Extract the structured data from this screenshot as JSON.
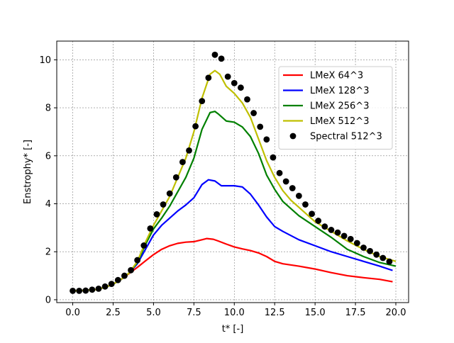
{
  "chart_data": {
    "type": "line",
    "title": "",
    "xlabel": "t* [-]",
    "ylabel": "Enstrophy* [-]",
    "xlim": [
      -0.99,
      20.79
    ],
    "ylim": [
      -0.12,
      10.78
    ],
    "xticks": [
      0.0,
      2.5,
      5.0,
      7.5,
      10.0,
      12.5,
      15.0,
      17.5,
      20.0
    ],
    "xtick_labels": [
      "0.0",
      "2.5",
      "5.0",
      "7.5",
      "10.0",
      "12.5",
      "15.0",
      "17.5",
      "20.0"
    ],
    "yticks": [
      0,
      2,
      4,
      6,
      8,
      10
    ],
    "ytick_labels": [
      "0",
      "2",
      "4",
      "6",
      "8",
      "10"
    ],
    "grid": true,
    "legend_position": "upper right",
    "series": [
      {
        "name": "LMeX 64^3",
        "color": "#ff0000",
        "style": "line",
        "x": [
          0.0,
          0.5,
          1.0,
          1.5,
          2.0,
          2.5,
          3.0,
          3.5,
          4.0,
          4.5,
          5.0,
          5.5,
          6.0,
          6.5,
          7.0,
          7.5,
          8.0,
          8.3,
          8.7,
          9.0,
          9.5,
          10.0,
          10.5,
          11.0,
          11.5,
          12.0,
          12.5,
          13.0,
          14.0,
          15.0,
          16.0,
          17.0,
          18.0,
          19.0,
          19.8
        ],
        "y": [
          0.37,
          0.38,
          0.4,
          0.43,
          0.52,
          0.65,
          0.85,
          1.1,
          1.35,
          1.62,
          1.88,
          2.1,
          2.25,
          2.35,
          2.4,
          2.42,
          2.5,
          2.55,
          2.52,
          2.45,
          2.32,
          2.2,
          2.12,
          2.05,
          1.95,
          1.8,
          1.6,
          1.5,
          1.4,
          1.28,
          1.13,
          1.0,
          0.92,
          0.85,
          0.75
        ]
      },
      {
        "name": "LMeX 128^3",
        "color": "#0000ff",
        "style": "line",
        "x": [
          0.0,
          0.5,
          1.0,
          1.5,
          2.0,
          2.5,
          3.0,
          3.5,
          4.0,
          4.5,
          5.0,
          5.5,
          6.0,
          6.5,
          7.0,
          7.5,
          8.0,
          8.4,
          8.8,
          9.2,
          9.6,
          10.0,
          10.5,
          11.0,
          11.5,
          12.0,
          12.5,
          13.0,
          14.0,
          15.0,
          16.0,
          17.0,
          18.0,
          19.0,
          19.8
        ],
        "y": [
          0.37,
          0.38,
          0.4,
          0.43,
          0.52,
          0.65,
          0.85,
          1.12,
          1.5,
          2.1,
          2.7,
          3.1,
          3.4,
          3.7,
          3.95,
          4.25,
          4.8,
          5.0,
          4.95,
          4.75,
          4.75,
          4.75,
          4.7,
          4.4,
          3.95,
          3.45,
          3.05,
          2.85,
          2.5,
          2.25,
          2.0,
          1.8,
          1.6,
          1.4,
          1.22
        ]
      },
      {
        "name": "LMeX 256^3",
        "color": "#008000",
        "style": "line",
        "x": [
          0.0,
          0.5,
          1.0,
          1.5,
          2.0,
          2.5,
          3.0,
          3.5,
          4.0,
          4.5,
          5.0,
          5.5,
          6.0,
          6.5,
          7.0,
          7.5,
          8.0,
          8.5,
          8.8,
          9.0,
          9.5,
          10.0,
          10.5,
          11.0,
          11.5,
          12.0,
          12.5,
          13.0,
          13.5,
          14.0,
          15.0,
          16.0,
          17.0,
          18.0,
          19.0,
          20.0
        ],
        "y": [
          0.37,
          0.38,
          0.4,
          0.43,
          0.52,
          0.65,
          0.85,
          1.12,
          1.55,
          2.3,
          2.95,
          3.4,
          3.9,
          4.5,
          5.1,
          5.9,
          7.1,
          7.8,
          7.85,
          7.75,
          7.45,
          7.4,
          7.2,
          6.8,
          6.1,
          5.2,
          4.6,
          4.1,
          3.8,
          3.5,
          3.05,
          2.6,
          2.1,
          1.8,
          1.55,
          1.4
        ]
      },
      {
        "name": "LMeX 512^3",
        "color": "#bfbf00",
        "style": "line",
        "x": [
          0.0,
          0.5,
          1.0,
          1.5,
          2.0,
          2.5,
          3.0,
          3.5,
          4.0,
          4.5,
          5.0,
          5.5,
          6.0,
          6.5,
          7.0,
          7.5,
          8.0,
          8.5,
          8.8,
          9.1,
          9.5,
          10.0,
          10.5,
          11.0,
          11.5,
          12.0,
          12.5,
          13.0,
          13.5,
          14.0,
          15.0,
          16.0,
          17.0,
          18.0,
          19.0,
          20.0
        ],
        "y": [
          0.37,
          0.38,
          0.4,
          0.43,
          0.52,
          0.65,
          0.85,
          1.12,
          1.6,
          2.4,
          3.1,
          3.7,
          4.3,
          5.1,
          5.9,
          7.0,
          8.4,
          9.4,
          9.55,
          9.4,
          8.9,
          8.6,
          8.2,
          7.6,
          6.7,
          5.8,
          5.1,
          4.55,
          4.15,
          3.85,
          3.25,
          2.85,
          2.45,
          2.1,
          1.8,
          1.6
        ]
      },
      {
        "name": "Spectral 512^3",
        "color": "#000000",
        "style": "marker",
        "x": [
          0.0,
          0.4,
          0.8,
          1.2,
          1.6,
          2.0,
          2.4,
          2.8,
          3.2,
          3.6,
          4.0,
          4.4,
          4.8,
          5.2,
          5.6,
          6.0,
          6.4,
          6.8,
          7.2,
          7.6,
          8.0,
          8.4,
          8.8,
          9.2,
          9.6,
          10.0,
          10.4,
          10.8,
          11.2,
          11.6,
          12.0,
          12.4,
          12.8,
          13.2,
          13.6,
          14.0,
          14.4,
          14.8,
          15.2,
          15.6,
          16.0,
          16.4,
          16.8,
          17.2,
          17.6,
          18.0,
          18.4,
          18.8,
          19.2,
          19.6
        ],
        "y": [
          0.37,
          0.37,
          0.38,
          0.42,
          0.46,
          0.55,
          0.66,
          0.82,
          1.0,
          1.23,
          1.65,
          2.26,
          2.97,
          3.56,
          3.97,
          4.43,
          5.1,
          5.74,
          6.22,
          7.23,
          8.28,
          9.25,
          10.21,
          10.05,
          9.3,
          9.03,
          8.84,
          8.35,
          7.78,
          7.21,
          6.68,
          5.93,
          5.28,
          4.93,
          4.65,
          4.33,
          3.97,
          3.58,
          3.29,
          3.05,
          2.91,
          2.8,
          2.66,
          2.53,
          2.36,
          2.17,
          2.03,
          1.88,
          1.74,
          1.59
        ]
      }
    ]
  }
}
